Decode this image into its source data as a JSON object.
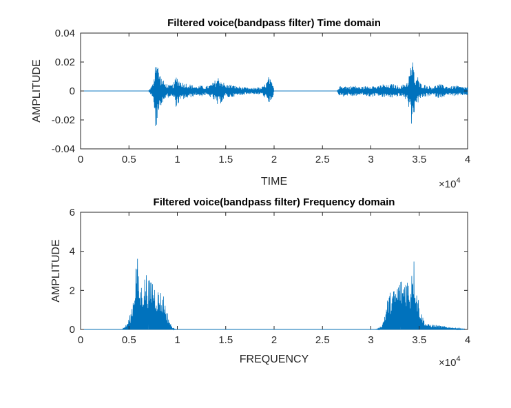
{
  "chart_data": [
    {
      "type": "line",
      "title": "Filtered voice(bandpass filter) Time domain",
      "xlabel": "TIME",
      "ylabel": "AMPLITUDE",
      "xlim": [
        0,
        40000
      ],
      "ylim": [
        -0.04,
        0.04
      ],
      "x_ticks": [
        "0",
        "0.5",
        "1",
        "1.5",
        "2",
        "2.5",
        "3",
        "3.5",
        "4"
      ],
      "y_ticks": [
        "-0.04",
        "-0.02",
        "0",
        "0.02",
        "0.04"
      ],
      "x_multiplier": "×10",
      "x_multiplier_exp": "4",
      "grid": false,
      "line_color": "#0072BD",
      "envelope": {
        "x": [
          0,
          7000,
          7100,
          7400,
          7600,
          7800,
          8000,
          8300,
          8700,
          9200,
          9600,
          9900,
          10200,
          10600,
          11200,
          11600,
          12000,
          12400,
          12800,
          13300,
          13700,
          14200,
          14700,
          15000,
          15400,
          15800,
          16500,
          17500,
          17800,
          18300,
          18600,
          18800,
          19200,
          19500,
          19600,
          19900,
          20000,
          26500,
          26700,
          27200,
          27700,
          28200,
          28700,
          29200,
          29700,
          30200,
          30700,
          31200,
          31700,
          32200,
          32700,
          33200,
          33800,
          34300,
          34600,
          34800,
          35000,
          35300,
          35800,
          36400,
          37000,
          37600,
          38200,
          38800,
          39400,
          40000
        ],
        "upper": [
          0,
          0,
          0.001,
          0.004,
          0.012,
          0.029,
          0.018,
          0.01,
          0.006,
          0.004,
          0.005,
          0.011,
          0.008,
          0.006,
          0.005,
          0.004,
          0.003,
          0.004,
          0.003,
          0.004,
          0.006,
          0.01,
          0.007,
          0.004,
          0.005,
          0.004,
          0.003,
          0.002,
          0.002,
          0.003,
          0.002,
          0.003,
          0.006,
          0.011,
          0.008,
          0.004,
          0,
          0,
          0.003,
          0.004,
          0.003,
          0.004,
          0.003,
          0.003,
          0.004,
          0.004,
          0.003,
          0.005,
          0.004,
          0.005,
          0.004,
          0.004,
          0.007,
          0.023,
          0.007,
          0.012,
          0.006,
          0.005,
          0.004,
          0.003,
          0.005,
          0.004,
          0.003,
          0.004,
          0.003,
          0.003
        ],
        "lower": [
          0,
          0,
          -0.001,
          -0.004,
          -0.015,
          -0.03,
          -0.02,
          -0.01,
          -0.006,
          -0.004,
          -0.005,
          -0.012,
          -0.008,
          -0.006,
          -0.005,
          -0.004,
          -0.003,
          -0.004,
          -0.003,
          -0.004,
          -0.006,
          -0.011,
          -0.007,
          -0.004,
          -0.005,
          -0.004,
          -0.003,
          -0.002,
          -0.002,
          -0.003,
          -0.002,
          -0.003,
          -0.006,
          -0.012,
          -0.008,
          -0.004,
          0,
          0,
          -0.003,
          -0.004,
          -0.003,
          -0.004,
          -0.003,
          -0.003,
          -0.004,
          -0.004,
          -0.003,
          -0.005,
          -0.004,
          -0.005,
          -0.004,
          -0.004,
          -0.007,
          -0.027,
          -0.008,
          -0.01,
          -0.006,
          -0.005,
          -0.004,
          -0.003,
          -0.005,
          -0.004,
          -0.003,
          -0.004,
          -0.003,
          -0.003
        ]
      }
    },
    {
      "type": "line",
      "title": "Filtered voice(bandpass filter) Frequency domain",
      "xlabel": "FREQUENCY",
      "ylabel": "AMPLITUDE",
      "xlim": [
        0,
        40000
      ],
      "ylim": [
        0,
        6
      ],
      "x_ticks": [
        "0",
        "0.5",
        "1",
        "1.5",
        "2",
        "2.5",
        "3",
        "3.5",
        "4"
      ],
      "y_ticks": [
        "0",
        "2",
        "4",
        "6"
      ],
      "x_multiplier": "×10",
      "x_multiplier_exp": "4",
      "grid": false,
      "line_color": "#0072BD",
      "envelope": {
        "x": [
          0,
          4300,
          4800,
          5200,
          5500,
          5700,
          5800,
          5900,
          6000,
          6200,
          6500,
          6800,
          7100,
          7400,
          7700,
          8000,
          8300,
          8600,
          8900,
          9300,
          9600,
          10000,
          30400,
          30800,
          31200,
          31500,
          31800,
          32100,
          32400,
          32700,
          33000,
          33300,
          33600,
          33900,
          34100,
          34200,
          34300,
          34500,
          34800,
          35200,
          35700,
          40000
        ],
        "upper": [
          0,
          0,
          0.3,
          0.9,
          2.0,
          3.5,
          4.4,
          3.6,
          2.8,
          2.3,
          2.6,
          3.0,
          2.5,
          2.8,
          2.3,
          2.1,
          2.0,
          1.8,
          1.0,
          0.3,
          0.05,
          0,
          0,
          0.05,
          0.3,
          1.0,
          1.8,
          2.0,
          2.1,
          2.3,
          2.8,
          2.5,
          3.0,
          2.6,
          2.3,
          3.6,
          4.4,
          3.5,
          2.0,
          0.9,
          0.3,
          0
        ]
      }
    }
  ]
}
